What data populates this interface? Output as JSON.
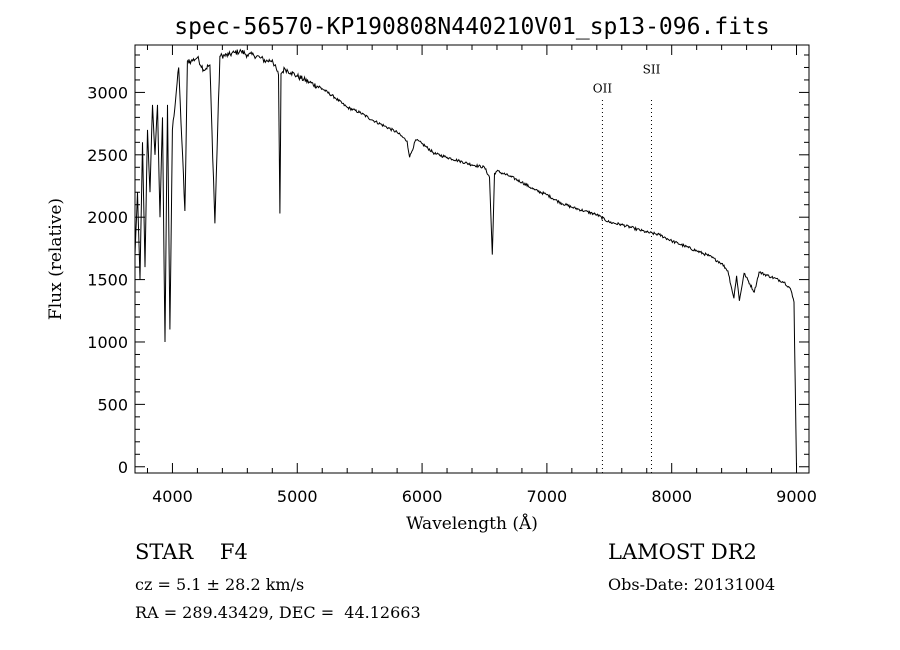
{
  "chart_data": {
    "type": "line",
    "title": "spec-56570-KP190808N440210V01_sp13-096.fits",
    "xlabel": "Wavelength (Å)",
    "ylabel": "Flux (relative)",
    "xlim": [
      3700,
      9100
    ],
    "ylim": [
      -50,
      3380
    ],
    "xticks": [
      4000,
      5000,
      6000,
      7000,
      8000,
      9000
    ],
    "yticks": [
      0,
      500,
      1000,
      1500,
      2000,
      2500,
      3000
    ],
    "grid": false,
    "legend": "none",
    "line_color": "#000000",
    "series": [
      {
        "x": [
          3700,
          3720,
          3740,
          3760,
          3780,
          3800,
          3820,
          3840,
          3860,
          3880,
          3900,
          3920,
          3940,
          3960,
          3980,
          4000,
          4050,
          4100,
          4120,
          4150,
          4200,
          4250,
          4300,
          4340,
          4380,
          4450,
          4500,
          4550,
          4600,
          4650,
          4700,
          4750,
          4800,
          4850,
          4861,
          4870,
          4900,
          4950,
          5000,
          5100,
          5200,
          5300,
          5400,
          5500,
          5600,
          5700,
          5800,
          5880,
          5900,
          5950,
          6000,
          6100,
          6200,
          6300,
          6400,
          6500,
          6540,
          6563,
          6580,
          6600,
          6700,
          6800,
          6900,
          7000,
          7100,
          7200,
          7300,
          7400,
          7500,
          7600,
          7700,
          7800,
          7900,
          8000,
          8100,
          8200,
          8300,
          8400,
          8450,
          8498,
          8520,
          8542,
          8580,
          8662,
          8700,
          8800,
          8900,
          8950,
          8980,
          8995,
          9000
        ],
        "y": [
          1700,
          2200,
          1500,
          2600,
          1600,
          2700,
          2200,
          2900,
          2500,
          2900,
          2000,
          2800,
          1000,
          2900,
          1100,
          2700,
          3200,
          2050,
          3250,
          3250,
          3280,
          3180,
          3220,
          1950,
          3290,
          3300,
          3320,
          3330,
          3300,
          3300,
          3280,
          3250,
          3260,
          3140,
          2030,
          3150,
          3190,
          3160,
          3130,
          3080,
          3030,
          2960,
          2880,
          2840,
          2780,
          2730,
          2680,
          2610,
          2480,
          2620,
          2590,
          2510,
          2480,
          2450,
          2420,
          2400,
          2320,
          1700,
          2350,
          2370,
          2330,
          2280,
          2220,
          2180,
          2120,
          2080,
          2050,
          2020,
          1960,
          1940,
          1910,
          1880,
          1860,
          1810,
          1770,
          1730,
          1690,
          1630,
          1570,
          1350,
          1530,
          1330,
          1550,
          1400,
          1560,
          1520,
          1480,
          1430,
          1320,
          300,
          0
        ]
      }
    ],
    "annotations": [
      {
        "label": "OII",
        "x": 7445,
        "y_text": 3000
      },
      {
        "label": "SII",
        "x": 7838,
        "y_text": 3150
      }
    ]
  },
  "footer": {
    "object_class": "STAR    F4",
    "survey": "LAMOST DR2",
    "cz": "cz = 5.1 ± 28.2 km/s",
    "obs_date": "Obs-Date: 20131004",
    "radec": "RA = 289.43429, DEC =  44.12663"
  }
}
